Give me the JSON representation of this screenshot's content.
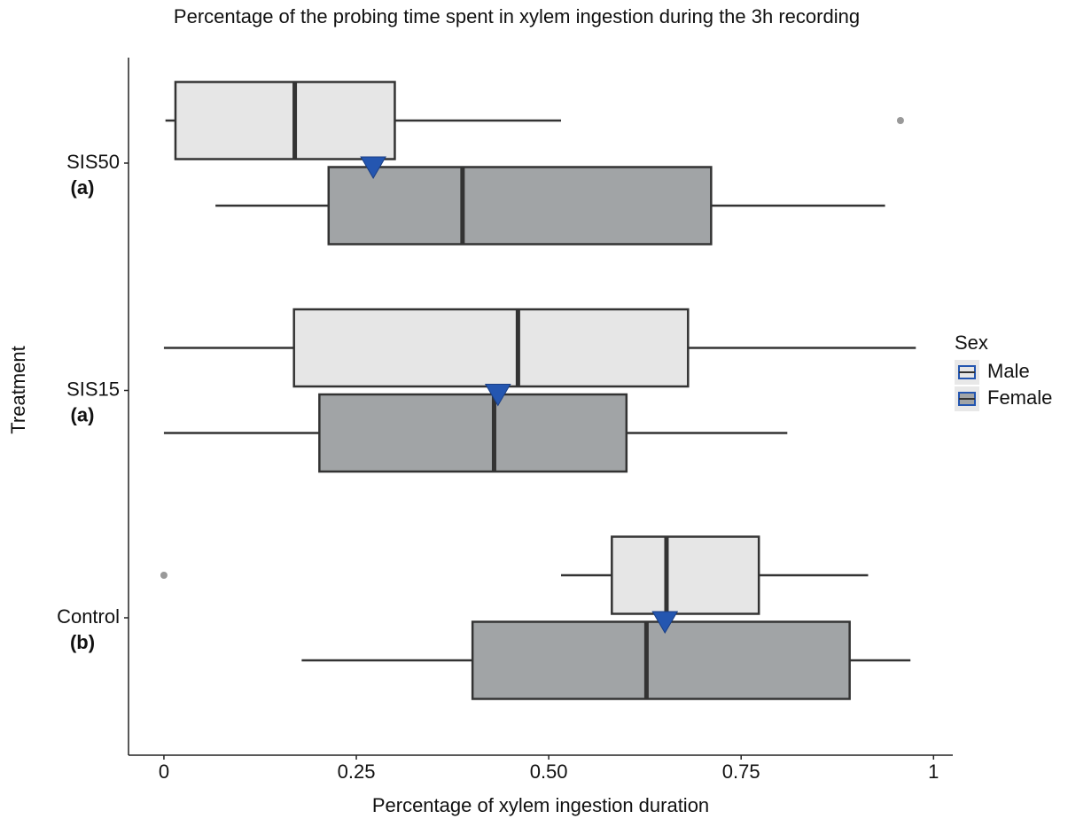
{
  "chart_data": {
    "type": "boxplot",
    "orientation": "horizontal",
    "title": "Percentage of the probing time spent in xylem ingestion during the 3h recording",
    "x_label": "Percentage of xylem ingestion duration",
    "y_label": "Treatment",
    "categories": [
      "SIS50",
      "SIS15",
      "Control"
    ],
    "category_letters": [
      "(a)",
      "(a)",
      "(b)"
    ],
    "legend_title": "Sex",
    "legend_position": "right",
    "xlim": [
      -0.046,
      1.025
    ],
    "xticks": [
      0,
      {
        "value": 0.25,
        "label": "0.25"
      },
      {
        "value": 0.5,
        "label": "0.50"
      },
      {
        "value": 0.75,
        "label": "0.75"
      },
      1
    ],
    "series": [
      {
        "name": "Male",
        "color": "#e6e6e6",
        "min": [
          0.002,
          0,
          0.516
        ],
        "q1": [
          0.015,
          0.169,
          0.582
        ],
        "median": [
          0.17,
          0.46,
          0.653
        ],
        "q3": [
          0.3,
          0.681,
          0.773
        ],
        "max": [
          0.516,
          0.977,
          0.915
        ],
        "outliers": [
          [
            0.957
          ],
          [],
          [
            0
          ]
        ]
      },
      {
        "name": "Female",
        "color": "#a1a4a6",
        "min": [
          0.067,
          0,
          0.179
        ],
        "q1": [
          0.214,
          0.202,
          0.401
        ],
        "median": [
          0.388,
          0.429,
          0.627
        ],
        "q3": [
          0.711,
          0.601,
          0.891
        ],
        "max": [
          0.937,
          0.81,
          0.97
        ],
        "outliers": [
          [],
          [],
          []
        ]
      }
    ],
    "means": [
      0.272,
      0.434,
      0.651
    ],
    "mean_color": "#2456b0"
  }
}
